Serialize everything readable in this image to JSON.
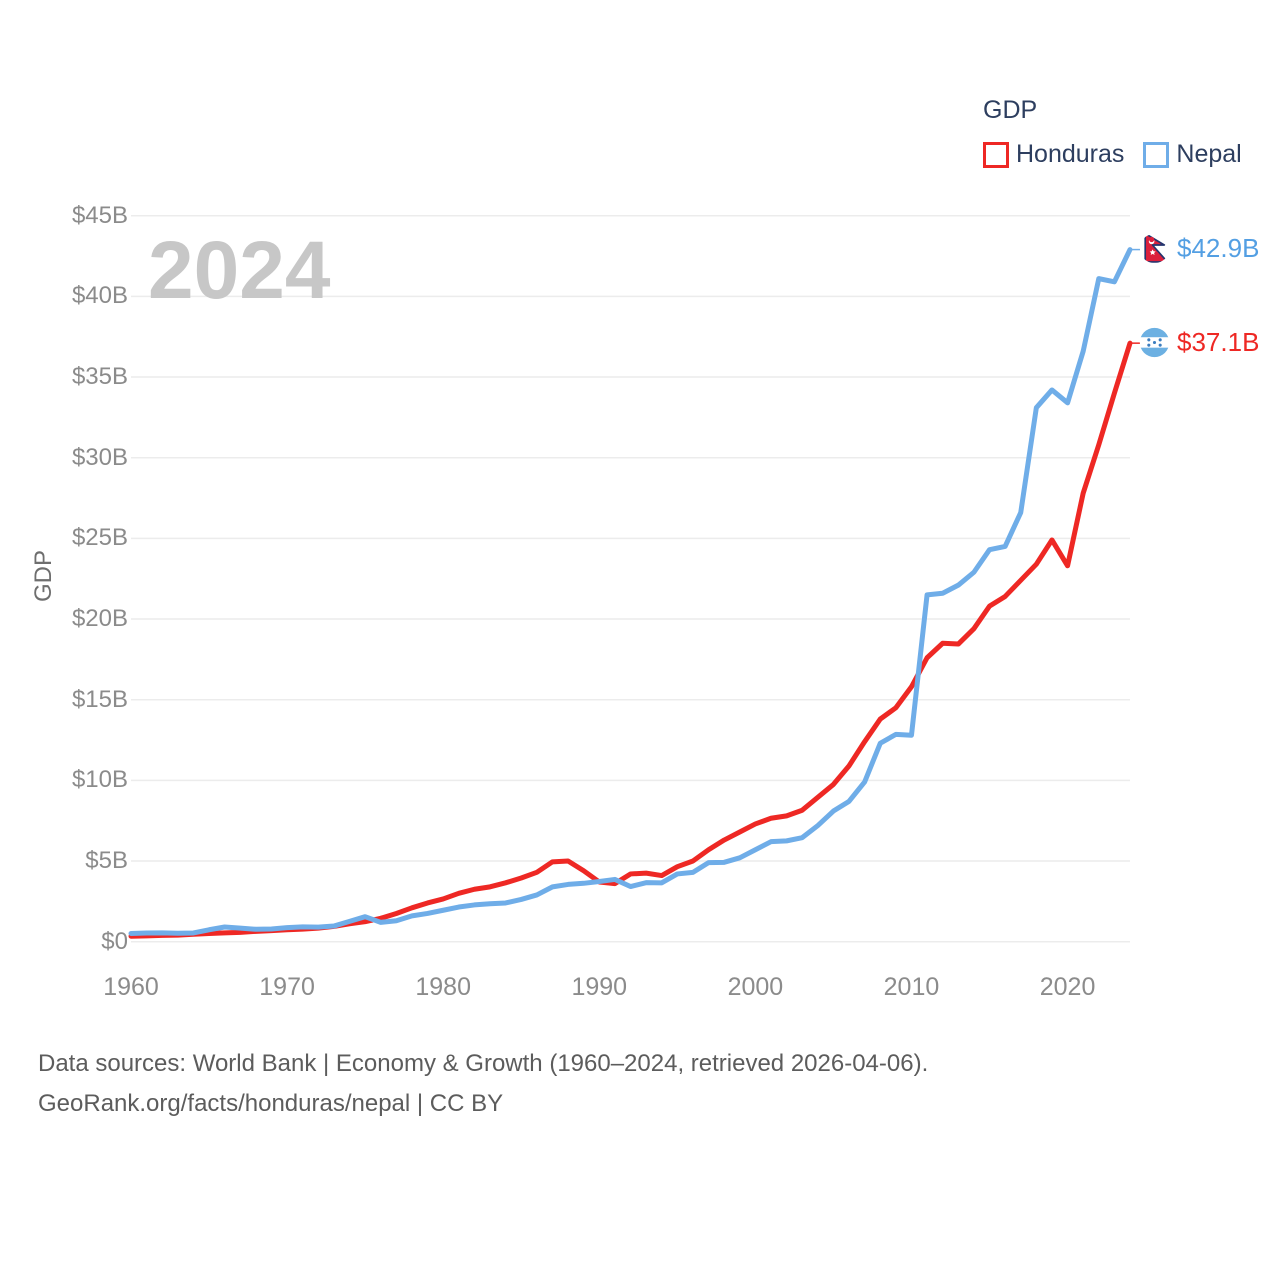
{
  "legend": {
    "title": "GDP",
    "items": [
      {
        "label": "Honduras",
        "color": "#ee2824"
      },
      {
        "label": "Nepal",
        "color": "#6fade8"
      }
    ]
  },
  "watermark": {
    "text": "2024"
  },
  "y_axis": {
    "title": "GDP",
    "ticks": [
      "$45B",
      "$40B",
      "$35B",
      "$30B",
      "$25B",
      "$20B",
      "$15B",
      "$10B",
      "$5B",
      "$0"
    ]
  },
  "x_axis": {
    "ticks": [
      "1960",
      "1970",
      "1980",
      "1990",
      "2000",
      "2010",
      "2020"
    ]
  },
  "end_labels": [
    {
      "series": "Nepal",
      "value": "$42.9B",
      "color": "#539fe3",
      "flag": "nepal-flag-icon"
    },
    {
      "series": "Honduras",
      "value": "$37.1B",
      "color": "#ee2824",
      "flag": "honduras-flag-icon"
    }
  ],
  "footer": {
    "line1": "Data sources: World Bank | Economy & Growth (1960–2024, retrieved 2026-04-06).",
    "line2": "GeoRank.org/facts/honduras/nepal | CC BY"
  },
  "colors": {
    "honduras_line": "#ee2824",
    "nepal_line": "#6fade8",
    "gridline": "#ececec",
    "axis_text": "#8b8b8b",
    "legend_text": "#2d3e5f",
    "watermark": "#c7c7c7",
    "footer_text": "#5c5c5c"
  },
  "chart_data": {
    "type": "line",
    "title": "GDP",
    "ylabel": "GDP",
    "xlabel": "",
    "ylim": [
      0,
      45
    ],
    "xlim": [
      1960,
      2024
    ],
    "grid": "horizontal",
    "legend_position": "top-right",
    "x": [
      1960,
      1961,
      1962,
      1963,
      1964,
      1965,
      1966,
      1967,
      1968,
      1969,
      1970,
      1971,
      1972,
      1973,
      1974,
      1975,
      1976,
      1977,
      1978,
      1979,
      1980,
      1981,
      1982,
      1983,
      1984,
      1985,
      1986,
      1987,
      1988,
      1989,
      1990,
      1991,
      1992,
      1993,
      1994,
      1995,
      1996,
      1997,
      1998,
      1999,
      2000,
      2001,
      2002,
      2003,
      2004,
      2005,
      2006,
      2007,
      2008,
      2009,
      2010,
      2011,
      2012,
      2013,
      2014,
      2015,
      2016,
      2017,
      2018,
      2019,
      2020,
      2021,
      2022,
      2023,
      2024
    ],
    "series": [
      {
        "name": "Honduras",
        "color": "#ee2824",
        "unit": "billion USD",
        "end_label": "$37.1B",
        "values": [
          0.34,
          0.36,
          0.39,
          0.41,
          0.46,
          0.51,
          0.55,
          0.58,
          0.64,
          0.69,
          0.74,
          0.78,
          0.84,
          0.95,
          1.11,
          1.24,
          1.45,
          1.75,
          2.1,
          2.4,
          2.65,
          3.0,
          3.25,
          3.4,
          3.65,
          3.95,
          4.3,
          4.95,
          5.0,
          4.4,
          3.7,
          3.6,
          4.2,
          4.25,
          4.1,
          4.65,
          5.0,
          5.7,
          6.3,
          6.8,
          7.3,
          7.65,
          7.8,
          8.15,
          8.95,
          9.75,
          10.9,
          12.4,
          13.8,
          14.5,
          15.8,
          17.6,
          18.5,
          18.45,
          19.4,
          20.8,
          21.4,
          22.4,
          23.4,
          24.9,
          23.3,
          27.8,
          30.8,
          34.0,
          37.1
        ]
      },
      {
        "name": "Nepal",
        "color": "#6fade8",
        "unit": "billion USD",
        "end_label": "$42.9B",
        "values": [
          0.51,
          0.54,
          0.55,
          0.52,
          0.54,
          0.74,
          0.91,
          0.84,
          0.77,
          0.79,
          0.87,
          0.92,
          0.9,
          0.97,
          1.26,
          1.55,
          1.2,
          1.3,
          1.6,
          1.75,
          1.95,
          2.15,
          2.28,
          2.35,
          2.4,
          2.62,
          2.9,
          3.4,
          3.55,
          3.62,
          3.73,
          3.86,
          3.42,
          3.66,
          3.65,
          4.2,
          4.3,
          4.9,
          4.92,
          5.2,
          5.7,
          6.2,
          6.25,
          6.45,
          7.2,
          8.1,
          8.7,
          9.9,
          12.3,
          12.85,
          12.8,
          21.5,
          21.6,
          22.1,
          22.9,
          24.3,
          24.5,
          26.6,
          33.1,
          34.2,
          33.4,
          36.6,
          41.1,
          40.9,
          42.9
        ]
      }
    ]
  }
}
